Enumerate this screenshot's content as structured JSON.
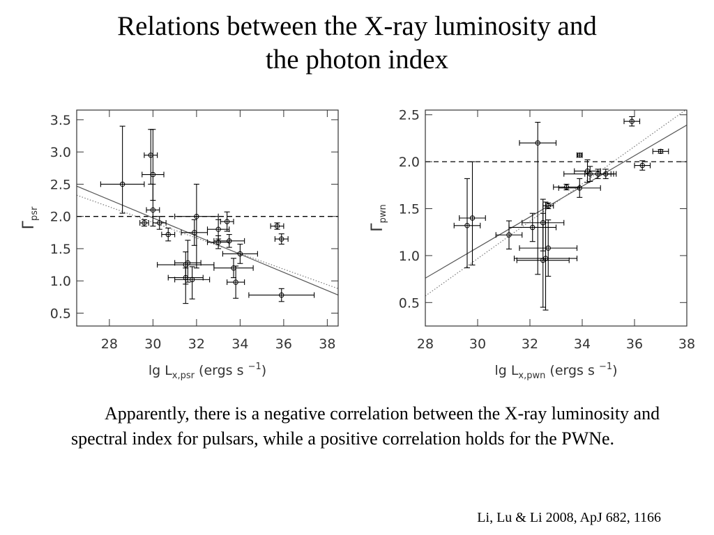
{
  "title": {
    "line1": "Relations between the X-ray luminosity and",
    "line2": "the photon index"
  },
  "caption": "Apparently, there is a negative correlation between the X-ray luminosity and spectral index for pulsars, while a positive correlation holds for the PWNe.",
  "citation": "Li, Lu & Li 2008, ApJ 682, 1166",
  "colors": {
    "axes": "#333333",
    "points": "#000000",
    "fit_solid": "#555555",
    "fit_dotted": "#777777"
  },
  "chart_data": [
    {
      "type": "scatter",
      "xlabel": {
        "prefix": "lg L",
        "sub": "x,psr",
        "unit": "(ergs s",
        "sup": "−1",
        "close": ")"
      },
      "ylabel": {
        "symbol": "Γ",
        "sub": "psr"
      },
      "xlim": [
        26.5,
        38.5
      ],
      "ylim": [
        0.3,
        3.65
      ],
      "xticks": [
        28,
        30,
        32,
        34,
        36,
        38
      ],
      "yticks": [
        0.5,
        1.0,
        1.5,
        2.0,
        2.5,
        3.0,
        3.5
      ],
      "xtick_labels": [
        "28",
        "30",
        "32",
        "34",
        "36",
        "38"
      ],
      "ytick_labels": [
        "0.5",
        "1.0",
        "1.5",
        "2.0",
        "2.5",
        "3.0",
        "3.5"
      ],
      "reference_line": {
        "y": 2.0,
        "style": "dashed"
      },
      "fit_lines": [
        {
          "style": "solid",
          "x": [
            26.5,
            38.5
          ],
          "y": [
            2.47,
            0.78
          ]
        },
        {
          "style": "dotted",
          "x": [
            26.5,
            38.5
          ],
          "y": [
            2.33,
            0.88
          ]
        }
      ],
      "points": [
        {
          "x": 28.6,
          "y": 2.5,
          "xerr": 1.0,
          "yerr_lo": 0.45,
          "yerr_hi": 0.9
        },
        {
          "x": 29.9,
          "y": 2.95,
          "xerr": 0.3,
          "yerr_lo": 0.45,
          "yerr_hi": 0.4
        },
        {
          "x": 30.0,
          "y": 2.65,
          "xerr": 0.5,
          "yerr_lo": 0.4,
          "yerr_hi": 0.7
        },
        {
          "x": 30.0,
          "y": 2.1,
          "xerr": 0.3,
          "yerr_lo": 0.25,
          "yerr_hi": 0.4
        },
        {
          "x": 29.6,
          "y": 1.9,
          "xerr": 0.2,
          "yerr_lo": 0.05,
          "yerr_hi": 0.05
        },
        {
          "x": 30.3,
          "y": 1.9,
          "xerr": 0.3,
          "yerr_lo": 0.1,
          "yerr_hi": 0.1
        },
        {
          "x": 30.7,
          "y": 1.72,
          "xerr": 0.3,
          "yerr_lo": 0.1,
          "yerr_hi": 0.1
        },
        {
          "x": 31.9,
          "y": 1.75,
          "xerr": 0.6,
          "yerr_lo": 0.2,
          "yerr_hi": 0.2
        },
        {
          "x": 32.0,
          "y": 2.0,
          "xerr": 1.0,
          "yerr_lo": 0.8,
          "yerr_hi": 0.5
        },
        {
          "x": 33.0,
          "y": 1.8,
          "xerr": 0.5,
          "yerr_lo": 0.15,
          "yerr_hi": 0.15
        },
        {
          "x": 33.0,
          "y": 1.6,
          "xerr": 0.5,
          "yerr_lo": 0.1,
          "yerr_hi": 0.1
        },
        {
          "x": 33.4,
          "y": 1.92,
          "xerr": 0.3,
          "yerr_lo": 0.15,
          "yerr_hi": 0.15
        },
        {
          "x": 33.5,
          "y": 1.62,
          "xerr": 0.7,
          "yerr_lo": 0.1,
          "yerr_hi": 0.1
        },
        {
          "x": 34.0,
          "y": 1.42,
          "xerr": 0.8,
          "yerr_lo": 0.15,
          "yerr_hi": 0.15
        },
        {
          "x": 31.5,
          "y": 1.25,
          "xerr": 1.3,
          "yerr_lo": 0.3,
          "yerr_hi": 0.2
        },
        {
          "x": 31.6,
          "y": 1.28,
          "xerr": 0.6,
          "yerr_lo": 0.3,
          "yerr_hi": 0.35
        },
        {
          "x": 31.5,
          "y": 1.05,
          "xerr": 0.8,
          "yerr_lo": 0.4,
          "yerr_hi": 0.15
        },
        {
          "x": 31.8,
          "y": 1.02,
          "xerr": 0.8,
          "yerr_lo": 0.3,
          "yerr_hi": 0.2
        },
        {
          "x": 33.7,
          "y": 1.2,
          "xerr": 0.9,
          "yerr_lo": 0.15,
          "yerr_hi": 0.15
        },
        {
          "x": 33.8,
          "y": 0.98,
          "xerr": 0.4,
          "yerr_lo": 0.25,
          "yerr_hi": 0.25
        },
        {
          "x": 35.7,
          "y": 1.85,
          "xerr": 0.3,
          "yerr_lo": 0.05,
          "yerr_hi": 0.05
        },
        {
          "x": 35.9,
          "y": 1.65,
          "xerr": 0.3,
          "yerr_lo": 0.08,
          "yerr_hi": 0.08
        },
        {
          "x": 35.9,
          "y": 0.78,
          "xerr": 1.5,
          "yerr_lo": 0.1,
          "yerr_hi": 0.1
        }
      ]
    },
    {
      "type": "scatter",
      "xlabel": {
        "prefix": "lg L",
        "sub": "x,pwn",
        "unit": "(ergs s",
        "sup": "−1",
        "close": ")"
      },
      "ylabel": {
        "symbol": "Γ",
        "sub": "pwn"
      },
      "xlim": [
        28.0,
        38.0
      ],
      "ylim": [
        0.25,
        2.55
      ],
      "xticks": [
        28,
        30,
        32,
        34,
        36,
        38
      ],
      "yticks": [
        0.5,
        1.0,
        1.5,
        2.0,
        2.5
      ],
      "xtick_labels": [
        "28",
        "30",
        "32",
        "34",
        "36",
        "38"
      ],
      "ytick_labels": [
        "0.5",
        "1.0",
        "1.5",
        "2.0",
        "2.5"
      ],
      "reference_line": {
        "y": 2.0,
        "style": "dashed"
      },
      "fit_lines": [
        {
          "style": "solid",
          "x": [
            28.0,
            38.0
          ],
          "y": [
            0.76,
            2.39
          ]
        },
        {
          "style": "dotted",
          "x": [
            28.0,
            38.0
          ],
          "y": [
            0.57,
            2.56
          ]
        }
      ],
      "points": [
        {
          "x": 29.6,
          "y": 1.32,
          "xerr": 0.5,
          "yerr_lo": 0.45,
          "yerr_hi": 0.5
        },
        {
          "x": 29.8,
          "y": 1.4,
          "xerr": 0.5,
          "yerr_lo": 0.5,
          "yerr_hi": 0.6
        },
        {
          "x": 31.2,
          "y": 1.22,
          "xerr": 0.5,
          "yerr_lo": 0.15,
          "yerr_hi": 0.15
        },
        {
          "x": 32.1,
          "y": 1.3,
          "xerr": 0.9,
          "yerr_lo": 0.15,
          "yerr_hi": 0.15
        },
        {
          "x": 32.3,
          "y": 2.2,
          "xerr": 0.7,
          "yerr_lo": 1.4,
          "yerr_hi": 0.22
        },
        {
          "x": 32.5,
          "y": 1.35,
          "xerr": 0.8,
          "yerr_lo": 0.3,
          "yerr_hi": 0.25
        },
        {
          "x": 32.7,
          "y": 1.53,
          "xerr": 0.2,
          "yerr_lo": 0.03,
          "yerr_hi": 0.03
        },
        {
          "x": 32.7,
          "y": 1.08,
          "xerr": 1.1,
          "yerr_lo": 0.3,
          "yerr_hi": 0.3
        },
        {
          "x": 32.5,
          "y": 0.95,
          "xerr": 1.0,
          "yerr_lo": 0.5,
          "yerr_hi": 0.5
        },
        {
          "x": 32.6,
          "y": 0.97,
          "xerr": 1.2,
          "yerr_lo": 0.55,
          "yerr_hi": 0.6
        },
        {
          "x": 33.4,
          "y": 1.73,
          "xerr": 0.5,
          "yerr_lo": 0.03,
          "yerr_hi": 0.03
        },
        {
          "x": 33.9,
          "y": 2.07,
          "xerr": 0.1,
          "yerr_lo": 0.02,
          "yerr_hi": 0.02
        },
        {
          "x": 33.9,
          "y": 1.72,
          "xerr": 0.8,
          "yerr_lo": 0.1,
          "yerr_hi": 0.1
        },
        {
          "x": 34.2,
          "y": 1.9,
          "xerr": 0.5,
          "yerr_lo": 0.12,
          "yerr_hi": 0.12
        },
        {
          "x": 34.3,
          "y": 1.87,
          "xerr": 1.0,
          "yerr_lo": 0.08,
          "yerr_hi": 0.08
        },
        {
          "x": 34.6,
          "y": 1.87,
          "xerr": 0.5,
          "yerr_lo": 0.05,
          "yerr_hi": 0.05
        },
        {
          "x": 34.9,
          "y": 1.87,
          "xerr": 0.3,
          "yerr_lo": 0.05,
          "yerr_hi": 0.05
        },
        {
          "x": 35.9,
          "y": 2.43,
          "xerr": 0.3,
          "yerr_lo": 0.05,
          "yerr_hi": 0.05
        },
        {
          "x": 36.3,
          "y": 1.96,
          "xerr": 0.3,
          "yerr_lo": 0.05,
          "yerr_hi": 0.05
        },
        {
          "x": 37.0,
          "y": 2.11,
          "xerr": 0.3,
          "yerr_lo": 0.02,
          "yerr_hi": 0.02
        }
      ]
    }
  ]
}
